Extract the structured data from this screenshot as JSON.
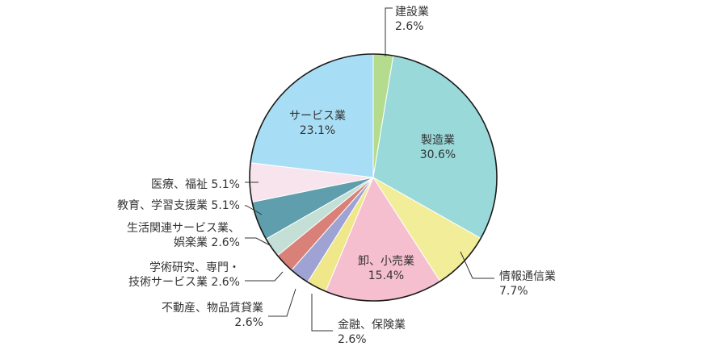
{
  "chart_data": {
    "type": "pie",
    "start": "12 o'clock",
    "direction": "clockwise",
    "slices": [
      {
        "name": "建設業",
        "label": [
          "建設業",
          "2.6%"
        ],
        "value": 2.6,
        "color": "#b5dc8e"
      },
      {
        "name": "製造業",
        "label": [
          "製造業",
          "30.6%"
        ],
        "value": 30.6,
        "color": "#99d9d9"
      },
      {
        "name": "情報通信業",
        "label": [
          "情報通信業",
          "7.7%"
        ],
        "value": 7.7,
        "color": "#f2ed98"
      },
      {
        "name": "卸、小売業",
        "label": [
          "卸、小売業",
          "15.4%"
        ],
        "value": 15.4,
        "color": "#f6bfd0"
      },
      {
        "name": "金融、保険業",
        "label": [
          "金融、保険業",
          "2.6%"
        ],
        "value": 2.6,
        "color": "#f0e68a"
      },
      {
        "name": "不動産、物品賃貸業",
        "label": [
          "不動産、物品賃貸業",
          "2.6%"
        ],
        "value": 2.6,
        "color": "#9ea3d3"
      },
      {
        "name": "学術研究、専門・技術サービス業",
        "label": [
          "学術研究、専門・",
          "技術サービス業 2.6%"
        ],
        "value": 2.6,
        "color": "#d98079"
      },
      {
        "name": "生活関連サービス業、娯楽業",
        "label": [
          "生活関連サービス業、",
          "娯楽業 2.6%"
        ],
        "value": 2.6,
        "color": "#c3dfd6"
      },
      {
        "name": "教育、学習支援業",
        "label": [
          "教育、学習支援業 5.1%"
        ],
        "value": 5.1,
        "color": "#5e9ead"
      },
      {
        "name": "医療、福祉",
        "label": [
          "医療、福祉 5.1%"
        ],
        "value": 5.1,
        "color": "#f7e4ec"
      },
      {
        "name": "サービス業",
        "label": [
          "サービス業",
          "23.1%"
        ],
        "value": 23.1,
        "color": "#a8def5"
      }
    ]
  }
}
